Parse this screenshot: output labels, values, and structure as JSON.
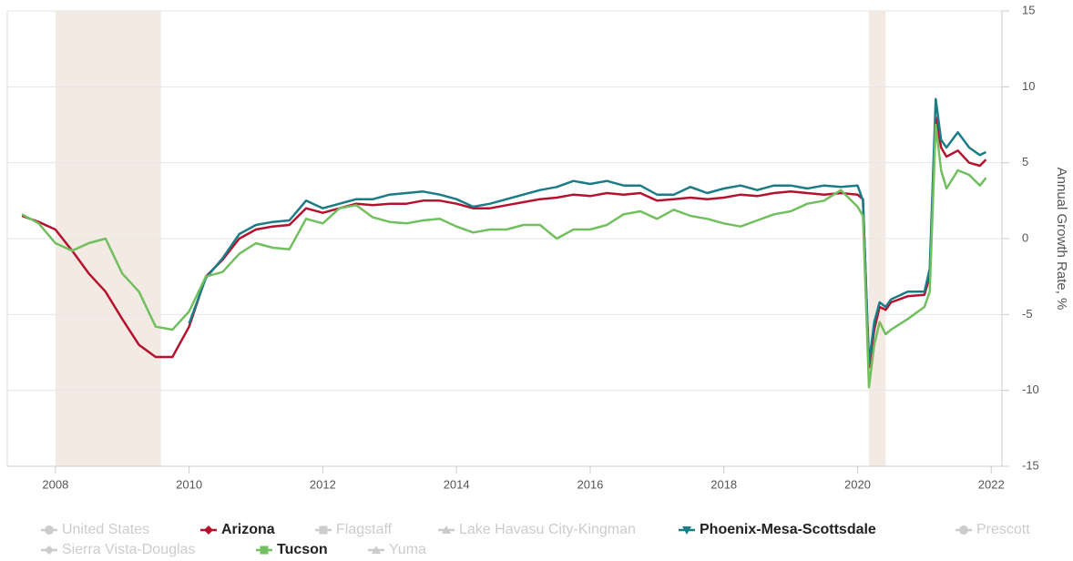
{
  "chart_data": {
    "type": "line",
    "y_label": "Annual Growth Rate, %",
    "xlim": [
      2007.28,
      2022.16
    ],
    "xticks": [
      2008,
      2010,
      2012,
      2014,
      2016,
      2018,
      2020,
      2022
    ],
    "ylim": [
      -15,
      15
    ],
    "yticks": [
      -15,
      -10,
      -5,
      0,
      5,
      10,
      15
    ],
    "grid": true,
    "recessions": [
      [
        2008.0,
        2009.58
      ],
      [
        2020.17,
        2020.42
      ]
    ],
    "x": [
      2007.5,
      2007.75,
      2008.0,
      2008.25,
      2008.5,
      2008.75,
      2009.0,
      2009.25,
      2009.5,
      2009.75,
      2010.0,
      2010.25,
      2010.5,
      2010.75,
      2011.0,
      2011.25,
      2011.5,
      2011.75,
      2012.0,
      2012.25,
      2012.5,
      2012.75,
      2013.0,
      2013.25,
      2013.5,
      2013.75,
      2014.0,
      2014.25,
      2014.5,
      2014.75,
      2015.0,
      2015.25,
      2015.5,
      2015.75,
      2016.0,
      2016.25,
      2016.5,
      2016.75,
      2017.0,
      2017.25,
      2017.5,
      2017.75,
      2018.0,
      2018.25,
      2018.5,
      2018.75,
      2019.0,
      2019.25,
      2019.5,
      2019.75,
      2020.0,
      2020.08,
      2020.17,
      2020.25,
      2020.33,
      2020.42,
      2020.5,
      2020.75,
      2021.0,
      2021.08,
      2021.17,
      2021.25,
      2021.33,
      2021.5,
      2021.67,
      2021.83,
      2021.92
    ],
    "series": [
      {
        "name": "United States",
        "marker": "circle",
        "visible": false
      },
      {
        "name": "Arizona",
        "marker": "diamond",
        "visible": true,
        "color": "#b5122f",
        "values": [
          1.5,
          1.1,
          0.6,
          -0.8,
          -2.3,
          -3.5,
          -5.3,
          -7.0,
          -7.8,
          -7.8,
          -5.8,
          -2.5,
          -1.4,
          0,
          0.6,
          0.8,
          0.9,
          2.0,
          1.7,
          2.0,
          2.3,
          2.2,
          2.3,
          2.3,
          2.5,
          2.5,
          2.3,
          2.0,
          2.0,
          2.2,
          2.4,
          2.6,
          2.7,
          2.9,
          2.8,
          3.0,
          2.9,
          3.0,
          2.5,
          2.6,
          2.7,
          2.6,
          2.7,
          2.9,
          2.8,
          3.0,
          3.1,
          3.0,
          2.9,
          3.0,
          2.9,
          2.6,
          -8.5,
          -6.0,
          -4.5,
          -4.7,
          -4.2,
          -3.8,
          -3.7,
          -2.5,
          8.0,
          6.0,
          5.4,
          5.8,
          5.0,
          4.8,
          5.2
        ]
      },
      {
        "name": "Flagstaff",
        "marker": "square",
        "visible": false
      },
      {
        "name": "Lake Havasu City-Kingman",
        "marker": "triangle",
        "visible": false
      },
      {
        "name": "Phoenix-Mesa-Scottsdale",
        "marker": "triangle-down",
        "visible": true,
        "color": "#1b7c86",
        "values": [
          null,
          null,
          null,
          null,
          null,
          null,
          null,
          null,
          null,
          null,
          -5.6,
          -2.6,
          -1.3,
          0.3,
          0.9,
          1.1,
          1.2,
          2.5,
          2.0,
          2.3,
          2.6,
          2.6,
          2.9,
          3.0,
          3.1,
          2.9,
          2.6,
          2.1,
          2.3,
          2.6,
          2.9,
          3.2,
          3.4,
          3.8,
          3.6,
          3.8,
          3.5,
          3.5,
          2.9,
          2.9,
          3.4,
          3.0,
          3.3,
          3.5,
          3.2,
          3.5,
          3.5,
          3.3,
          3.5,
          3.4,
          3.5,
          2.5,
          -8.2,
          -5.5,
          -4.2,
          -4.5,
          -4.0,
          -3.5,
          -3.5,
          -2.0,
          9.2,
          6.5,
          6.0,
          7.0,
          6.0,
          5.5,
          5.7
        ]
      },
      {
        "name": "Prescott",
        "marker": "circle",
        "visible": false
      },
      {
        "name": "Sierra Vista-Douglas",
        "marker": "diamond",
        "visible": false
      },
      {
        "name": "Tucson",
        "marker": "square",
        "visible": true,
        "color": "#72bf5f",
        "values": [
          1.6,
          1.0,
          -0.3,
          -0.8,
          -0.3,
          0,
          -2.3,
          -3.5,
          -5.8,
          -6.0,
          -4.8,
          -2.5,
          -2.2,
          -1.0,
          -0.3,
          -0.6,
          -0.7,
          1.3,
          1.0,
          2.0,
          2.2,
          1.4,
          1.1,
          1.0,
          1.2,
          1.3,
          0.8,
          0.4,
          0.6,
          0.6,
          0.9,
          0.9,
          0.0,
          0.6,
          0.6,
          0.9,
          1.6,
          1.8,
          1.3,
          1.9,
          1.5,
          1.3,
          1.0,
          0.8,
          1.2,
          1.6,
          1.8,
          2.3,
          2.5,
          3.2,
          2.1,
          1.5,
          -9.8,
          -7.0,
          -5.5,
          -6.3,
          -6.0,
          -5.3,
          -4.5,
          -3.5,
          7.5,
          4.5,
          3.3,
          4.5,
          4.2,
          3.5,
          4.0
        ]
      },
      {
        "name": "Yuma",
        "marker": "triangle",
        "visible": false
      }
    ]
  }
}
